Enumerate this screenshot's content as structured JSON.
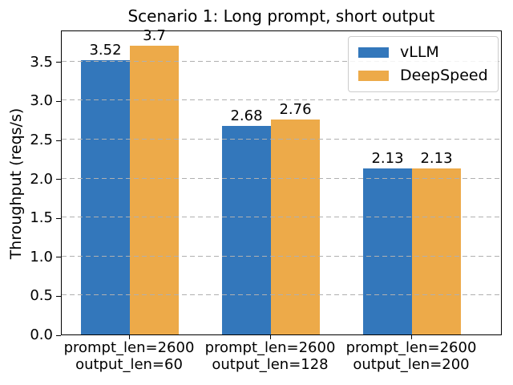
{
  "chart_data": {
    "type": "bar",
    "title": "Scenario 1: Long prompt, short output",
    "ylabel": "Throughput (reqs/s)",
    "xlabel": "",
    "categories": [
      "prompt_len=2600\noutput_len=60",
      "prompt_len=2600\noutput_len=128",
      "prompt_len=2600\noutput_len=200"
    ],
    "series": [
      {
        "name": "vLLM",
        "color": "#3377bb",
        "values": [
          3.52,
          2.68,
          2.13
        ],
        "value_labels": [
          "3.52",
          "2.68",
          "2.13"
        ]
      },
      {
        "name": "DeepSpeed",
        "color": "#edaa49",
        "values": [
          3.7,
          2.76,
          2.13
        ],
        "value_labels": [
          "3.7",
          "2.76",
          "2.13"
        ]
      }
    ],
    "yticks": [
      0.0,
      0.5,
      1.0,
      1.5,
      2.0,
      2.5,
      3.0,
      3.5
    ],
    "ytick_labels": [
      "0.0",
      "0.5",
      "1.0",
      "1.5",
      "2.0",
      "2.5",
      "3.0",
      "3.5"
    ],
    "ylim": [
      0,
      3.91
    ],
    "grid": "horizontal-dashed",
    "grid_color": "#b0b0b0",
    "legend_position": "upper right",
    "bar_value_labels": true
  }
}
